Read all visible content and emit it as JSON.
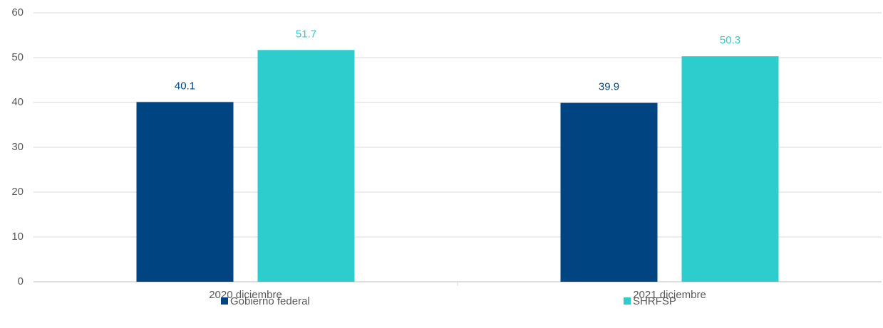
{
  "chart_data": {
    "type": "bar",
    "categories": [
      "2020 diciembre",
      "2021 diciembre"
    ],
    "series": [
      {
        "name": "Gobierno federal",
        "color": "#004481",
        "values": [
          40.1,
          39.9
        ]
      },
      {
        "name": "SHRFSP",
        "color": "#2dcccd",
        "values": [
          51.7,
          50.3
        ]
      }
    ],
    "ylim": [
      0,
      60
    ],
    "yticks": [
      0,
      10,
      20,
      30,
      40,
      50,
      60
    ],
    "grid": true,
    "legend": "bottom"
  }
}
